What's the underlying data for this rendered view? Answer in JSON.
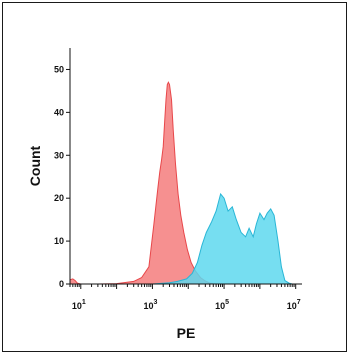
{
  "chart_data": {
    "type": "area",
    "xlabel": "PE",
    "ylabel": "Count",
    "x_scale": "log",
    "xlim": [
      5,
      15000000
    ],
    "ylim": [
      0,
      55
    ],
    "x_ticks": [
      {
        "value": 10,
        "base": "10",
        "exp": "1"
      },
      {
        "value": 1000,
        "base": "10",
        "exp": "3"
      },
      {
        "value": 100000,
        "base": "10",
        "exp": "5"
      },
      {
        "value": 10000000,
        "base": "10",
        "exp": "7"
      }
    ],
    "y_ticks": [
      0,
      10,
      20,
      30,
      40,
      50
    ],
    "grid": false,
    "legend": "none",
    "series": [
      {
        "color": "#f47c7c",
        "stroke": "#e8474a",
        "x": [
          5,
          6,
          7,
          8,
          10,
          30,
          100,
          300,
          500,
          800,
          1100,
          1400,
          1600,
          1800,
          2000,
          2200,
          2400,
          2600,
          2800,
          3000,
          3400,
          3800,
          4400,
          5200,
          6200,
          7500,
          9500,
          12000,
          16000,
          22000,
          30000,
          40000,
          55000
        ],
        "values": [
          1.0,
          1.2,
          0.8,
          0.2,
          0,
          0,
          0.1,
          0.6,
          1.5,
          4,
          14,
          22,
          26,
          29,
          32,
          38,
          43,
          46.5,
          47,
          46.5,
          43,
          36,
          28,
          21,
          16,
          12,
          8,
          5,
          3,
          1.5,
          0.7,
          0.2,
          0
        ]
      },
      {
        "color": "#5ed8ef",
        "stroke": "#29b6d6",
        "x": [
          5,
          100,
          1000,
          3000,
          5000,
          9000,
          13000,
          18000,
          24000,
          32000,
          45000,
          60000,
          80000,
          100000,
          130000,
          170000,
          220000,
          300000,
          400000,
          500000,
          650000,
          800000,
          1000000,
          1300000,
          1600000,
          2000000,
          2500000,
          3200000,
          4000000,
          5000000,
          6500000,
          8000000,
          12000000
        ],
        "values": [
          0,
          0,
          0,
          0.3,
          0.6,
          1.2,
          2.5,
          5,
          9,
          12,
          14.5,
          17,
          21,
          20,
          17,
          18,
          15,
          12,
          11,
          13,
          11,
          14,
          16.5,
          15,
          16.5,
          17.5,
          16,
          10,
          4,
          0.8,
          0.2,
          0,
          0
        ]
      }
    ]
  }
}
